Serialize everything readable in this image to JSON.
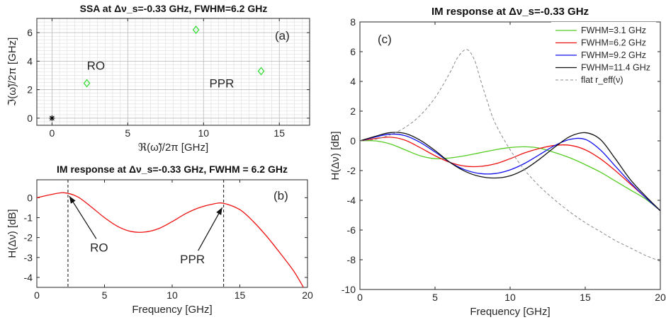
{
  "figure": {
    "panel_a": {
      "title": "SSA at Δν_s=-0.33 GHz, FWHM=6.2 GHz",
      "tag": "(a)"
    },
    "panel_b": {
      "title": "IM response at Δν_s=-0.33 GHz, FWHM = 6.2 GHz",
      "tag": "(b)"
    },
    "panel_c": {
      "title": "IM response at Δν_s=-0.33 GHz",
      "tag": "(c)"
    }
  },
  "chart_data": [
    {
      "type": "scatter",
      "title": "SSA at Δν_s=-0.33 GHz, FWHM=6.2 GHz",
      "xlabel": "ℜ(ω̃)/2π [GHz]",
      "ylabel": "ℑ(ω̃)/2π [GHz]",
      "xlim": [
        -1,
        17
      ],
      "ylim": [
        -0.5,
        7
      ],
      "xticks": [
        0,
        5,
        10,
        15
      ],
      "yticks": [
        0,
        2,
        4,
        6
      ],
      "grid": true,
      "points": [
        {
          "x": 0,
          "y": 0,
          "marker": "star",
          "color": "#000000"
        },
        {
          "x": 2.3,
          "y": 2.45,
          "marker": "diamond",
          "color": "#33dd33"
        },
        {
          "x": 9.5,
          "y": 6.2,
          "marker": "diamond",
          "color": "#33dd33"
        },
        {
          "x": 13.8,
          "y": 3.3,
          "marker": "diamond",
          "color": "#33dd33"
        }
      ],
      "annotations": [
        {
          "text": "RO",
          "x": 2.9,
          "y": 3.4
        },
        {
          "text": "PPR",
          "x": 11.2,
          "y": 2.15
        }
      ]
    },
    {
      "type": "line",
      "title": "IM response at Δν_s=-0.33 GHz, FWHM = 6.2 GHz",
      "xlabel": "Frequency [GHz]",
      "ylabel": "H(Δν) [dB]",
      "xlim": [
        0,
        20
      ],
      "ylim": [
        -4.5,
        0.9
      ],
      "xticks": [
        0,
        5,
        10,
        15,
        20
      ],
      "yticks": [
        0,
        -1,
        -2,
        -3,
        -4
      ],
      "grid": false,
      "series": [
        {
          "color": "#ee1111",
          "x": [
            0,
            1,
            2,
            3,
            4,
            5,
            6,
            7,
            8,
            9,
            10,
            11,
            12,
            13,
            13.8,
            15,
            16,
            17,
            18,
            19,
            19.7
          ],
          "y": [
            0,
            0.15,
            0.25,
            0.05,
            -0.45,
            -1.0,
            -1.45,
            -1.7,
            -1.72,
            -1.55,
            -1.2,
            -0.8,
            -0.5,
            -0.32,
            -0.28,
            -0.6,
            -1.2,
            -1.95,
            -2.8,
            -3.7,
            -4.5
          ]
        }
      ],
      "vlines": [
        2.3,
        13.8
      ],
      "annotations": [
        {
          "text": "RO",
          "x": 4.6,
          "y": -2.7,
          "arrow_to": [
            2.3,
            0.22
          ]
        },
        {
          "text": "PPR",
          "x": 11.5,
          "y": -3.3,
          "arrow_to": [
            13.8,
            -0.35
          ]
        }
      ]
    },
    {
      "type": "line",
      "title": "IM response at Δν_s=-0.33 GHz",
      "xlabel": "Frequency [GHz]",
      "ylabel": "H(Δν) [dB]",
      "xlim": [
        0,
        20
      ],
      "ylim": [
        -10,
        8
      ],
      "xticks": [
        0,
        5,
        10,
        15,
        20
      ],
      "yticks": [
        -10,
        -8,
        -6,
        -4,
        -2,
        0,
        2,
        4,
        6,
        8
      ],
      "grid": false,
      "legend": "top-right",
      "series": [
        {
          "name": "FWHM=3.1 GHz",
          "color": "#55cc22",
          "x": [
            0,
            1,
            2,
            3,
            4,
            5,
            6,
            7,
            8,
            9,
            10,
            11,
            12,
            13,
            14,
            15,
            16,
            17,
            18,
            19,
            20
          ],
          "y": [
            0,
            0,
            -0.2,
            -0.6,
            -1.0,
            -1.2,
            -1.15,
            -1.0,
            -0.8,
            -0.6,
            -0.45,
            -0.4,
            -0.5,
            -0.8,
            -1.15,
            -1.6,
            -2.1,
            -2.7,
            -3.3,
            -3.9,
            -4.7
          ]
        },
        {
          "name": "FWHM=6.2 GHz",
          "color": "#ee1111",
          "x": [
            0,
            1,
            2,
            3,
            4,
            5,
            6,
            7,
            8,
            9,
            10,
            11,
            12,
            13,
            14,
            15,
            16,
            17,
            18,
            19,
            20
          ],
          "y": [
            0,
            0.15,
            0.25,
            0.05,
            -0.45,
            -1.0,
            -1.45,
            -1.7,
            -1.72,
            -1.55,
            -1.2,
            -0.8,
            -0.5,
            -0.3,
            -0.3,
            -0.6,
            -1.2,
            -2.0,
            -2.9,
            -3.8,
            -4.7
          ]
        },
        {
          "name": "FWHM=9.2 GHz",
          "color": "#1111ee",
          "x": [
            0,
            1,
            2,
            3,
            4,
            5,
            6,
            7,
            8,
            9,
            10,
            11,
            12,
            13,
            14,
            15,
            16,
            17,
            18,
            19,
            20
          ],
          "y": [
            0,
            0.25,
            0.45,
            0.35,
            -0.1,
            -0.75,
            -1.45,
            -1.95,
            -2.2,
            -2.2,
            -1.95,
            -1.5,
            -0.9,
            -0.3,
            0.1,
            0.1,
            -0.6,
            -1.7,
            -2.8,
            -3.8,
            -4.7
          ]
        },
        {
          "name": "FWHM=11.4 GHz",
          "color": "#111111",
          "x": [
            0,
            1,
            2,
            3,
            4,
            5,
            6,
            7,
            8,
            9,
            10,
            11,
            12,
            13,
            14,
            15,
            16,
            17,
            18,
            19,
            20
          ],
          "y": [
            0,
            0.3,
            0.55,
            0.5,
            0.05,
            -0.65,
            -1.45,
            -2.05,
            -2.4,
            -2.5,
            -2.35,
            -1.9,
            -1.2,
            -0.4,
            0.3,
            0.55,
            0.1,
            -1.2,
            -2.6,
            -3.7,
            -4.7
          ]
        },
        {
          "name": "flat r_eff(ν)",
          "color": "#888888",
          "dashed": true,
          "x": [
            0,
            1,
            2,
            3,
            4,
            5,
            6,
            6.5,
            7.1,
            7.6,
            8,
            8.5,
            9,
            10,
            11,
            12,
            13,
            14,
            15,
            16,
            17,
            18,
            19,
            20
          ],
          "y": [
            0,
            0.1,
            0.4,
            0.9,
            1.7,
            2.9,
            4.6,
            5.6,
            6.15,
            5.5,
            4.2,
            2.6,
            1.2,
            -0.6,
            -2.0,
            -3.1,
            -4.0,
            -4.8,
            -5.5,
            -6.1,
            -6.7,
            -7.2,
            -7.7,
            -8.1
          ]
        }
      ]
    }
  ]
}
